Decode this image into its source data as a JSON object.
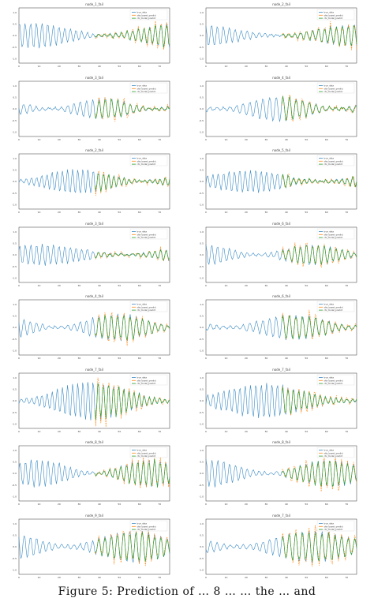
{
  "colors": {
    "true_data": "#3b8bc4",
    "site_based": "#ff8c1a",
    "ctx_model": "#2ca02c",
    "axis": "#333333",
    "text": "#444444"
  },
  "caption": "Figure 5: Prediction of … 8 … … the … and",
  "panels": [
    {
      "title": "node_1_fail",
      "legend": [
        "true_data",
        "site_based_predict",
        "ctx_model_predict"
      ],
      "seed": 1,
      "amp": 0.55
    },
    {
      "title": "node_2_fail",
      "legend": [
        "true_data",
        "site_based_predict",
        "ctx_model_predict"
      ],
      "seed": 2,
      "amp": 0.5
    },
    {
      "title": "node_3_fail",
      "legend": [
        "true_data",
        "site_based_predict",
        "ctx_model_predict"
      ],
      "seed": 3,
      "amp": 0.45
    },
    {
      "title": "node_4_fail",
      "legend": [
        "true_data",
        "site_based_predict",
        "ctx_model_predict"
      ],
      "seed": 4,
      "amp": 0.55
    },
    {
      "title": "node_2_fail",
      "legend": [
        "true_data",
        "site_based_predict",
        "ctx_model_predict"
      ],
      "seed": 5,
      "amp": 0.55
    },
    {
      "title": "node_5_fail",
      "legend": [
        "true_data",
        "site_based_predict",
        "ctx_model_predict"
      ],
      "seed": 6,
      "amp": 0.5
    },
    {
      "title": "node_3_fail",
      "legend": [
        "true_data",
        "site_based_predict",
        "ctx_model_predict"
      ],
      "seed": 7,
      "amp": 0.45
    },
    {
      "title": "node_6_fail",
      "legend": [
        "true_data",
        "site_based_predict",
        "ctx_model_predict"
      ],
      "seed": 8,
      "amp": 0.45
    },
    {
      "title": "node_4_fail",
      "legend": [
        "true_data",
        "site_based_predict",
        "ctx_model_predict"
      ],
      "seed": 9,
      "amp": 0.6
    },
    {
      "title": "node_6_fail",
      "legend": [
        "true_data",
        "site_based_predict",
        "ctx_model_predict"
      ],
      "seed": 10,
      "amp": 0.55
    },
    {
      "title": "node_7_fail",
      "legend": [
        "true_data",
        "site_based_predict",
        "ctx_model_predict"
      ],
      "seed": 11,
      "amp": 0.85
    },
    {
      "title": "node_7_fail",
      "legend": [
        "true_data",
        "site_based_predict",
        "ctx_model_predict"
      ],
      "seed": 12,
      "amp": 0.75
    },
    {
      "title": "node_8_fail",
      "legend": [
        "true_data",
        "site_based_predict",
        "ctx_model_predict"
      ],
      "seed": 13,
      "amp": 0.6
    },
    {
      "title": "node_8_fail",
      "legend": [
        "true_data",
        "site_based_predict",
        "ctx_model_predict"
      ],
      "seed": 14,
      "amp": 0.6
    },
    {
      "title": "node_9_fail",
      "legend": [
        "true_data",
        "site_based_predict",
        "ctx_model_predict"
      ],
      "seed": 15,
      "amp": 0.7
    },
    {
      "title": "node_7_fail",
      "legend": [
        "true_data",
        "site_based_predict",
        "ctx_model_predict"
      ],
      "seed": 16,
      "amp": 0.7
    }
  ],
  "chart_data": {
    "type": "line",
    "x_ticks": [
      "0",
      "10",
      "20",
      "30",
      "40",
      "50",
      "60",
      "70"
    ],
    "y_ticks": [
      "1.0",
      "0.5",
      "0.0",
      "-0.5",
      "-1.0"
    ],
    "xlim": [
      0,
      75
    ],
    "ylim": [
      -1.2,
      1.2
    ],
    "series_names": [
      "true_data",
      "site_based_predict",
      "ctx_model_predict"
    ],
    "grid": false,
    "legend_position": "upper right"
  }
}
